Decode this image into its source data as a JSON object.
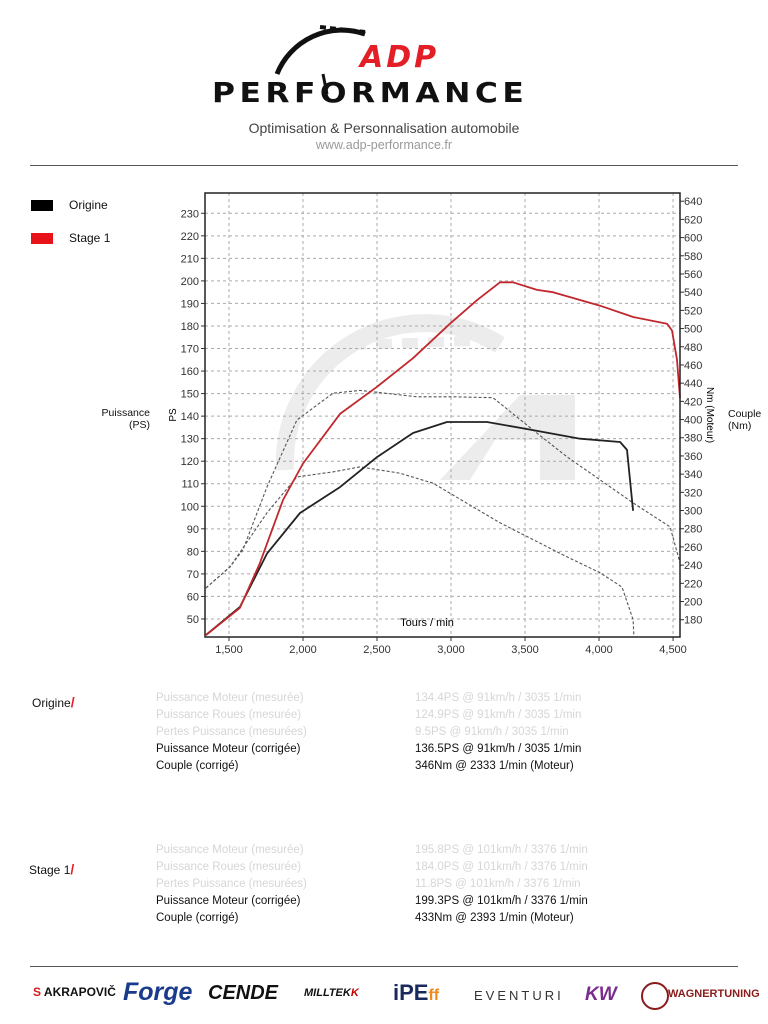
{
  "header": {
    "logo_line1": "ADP",
    "logo_line2": "PERFORMANCE",
    "tagline": "Optimisation & Personnalisation automobile",
    "url": "www.adp-performance.fr"
  },
  "legend": [
    {
      "label": "Origine",
      "color": "#000000"
    },
    {
      "label": "Stage 1",
      "color": "#e8121a"
    }
  ],
  "axis_notes": {
    "left": [
      "Puissance",
      "(PS)"
    ],
    "right": [
      "Couple",
      "(Nm)"
    ]
  },
  "chart_data": {
    "type": "line",
    "xlabel": "Tours / min",
    "ylabel_left": "PS",
    "ylabel_right": "Nm (Moteur)",
    "xlim": [
      1338,
      4547
    ],
    "ylim_left": [
      42,
      239
    ],
    "ylim_right": [
      161,
      649
    ],
    "x_ticks": [
      1500,
      2000,
      2500,
      3000,
      3500,
      4000,
      4500
    ],
    "x_tick_labels": [
      "1,500",
      "2,000",
      "2,500",
      "3,000",
      "3,500",
      "4,000",
      "4,500"
    ],
    "y_left_ticks": [
      50,
      60,
      70,
      80,
      90,
      100,
      110,
      120,
      130,
      140,
      150,
      160,
      170,
      180,
      190,
      200,
      210,
      220,
      230
    ],
    "y_right_ticks": [
      180,
      200,
      220,
      240,
      260,
      280,
      300,
      320,
      340,
      360,
      380,
      400,
      420,
      440,
      460,
      480,
      500,
      520,
      540,
      560,
      580,
      600,
      620,
      640
    ],
    "grid": true,
    "watermark": "ADP logo",
    "series": [
      {
        "name": "Origine",
        "quantity": "power",
        "axis": "left",
        "color": "#222222",
        "style": "solid",
        "x": [
          1345,
          1574,
          1757,
          1980,
          2250,
          2500,
          2743,
          2973,
          3243,
          3554,
          3872,
          4142,
          4189,
          4230
        ],
        "y": [
          42.9,
          55.3,
          79,
          97,
          108.5,
          121.8,
          132.5,
          137.4,
          137.4,
          133.8,
          130,
          128.5,
          125,
          98
        ]
      },
      {
        "name": "Stage 1",
        "quantity": "power",
        "axis": "left",
        "color": "#c0282e",
        "style": "solid",
        "x": [
          1345,
          1574,
          1709,
          1865,
          2000,
          2250,
          2500,
          2743,
          2993,
          3176,
          3331,
          3419,
          3581,
          3689,
          4007,
          4230,
          4459,
          4493,
          4527,
          4547
        ],
        "y": [
          42.9,
          54.9,
          74.8,
          102.8,
          119,
          141,
          153,
          165.7,
          181,
          191.5,
          199.4,
          199.4,
          196,
          195,
          189,
          184,
          181,
          178,
          165,
          148
        ]
      },
      {
        "name": "Origine",
        "quantity": "torque",
        "axis": "right",
        "color": "#555555",
        "style": "dashed",
        "x": [
          1345,
          1507,
          1757,
          1959,
          2203,
          2385,
          2655,
          2878,
          3108,
          3331,
          3554,
          3784,
          4007,
          4155,
          4230,
          4235
        ],
        "y": [
          215,
          238,
          297.5,
          337,
          342.5,
          348,
          341,
          330,
          308,
          286.5,
          268,
          249,
          231.6,
          216,
          180,
          164
        ]
      },
      {
        "name": "Stage 1",
        "quantity": "torque",
        "axis": "right",
        "color": "#555555",
        "style": "dashed",
        "x": [
          1345,
          1507,
          1595,
          1757,
          1959,
          2203,
          2385,
          2770,
          3014,
          3284,
          3554,
          3784,
          4007,
          4230,
          4480,
          4547
        ],
        "y": [
          215,
          238,
          257,
          326,
          399.5,
          429,
          432,
          425,
          425,
          424,
          388.5,
          359,
          333.7,
          308.4,
          282,
          242.6
        ]
      }
    ]
  },
  "results": [
    {
      "label": "Origine",
      "rows": [
        {
          "name": "Puissance Moteur (mesurée)",
          "value": "134.4PS @ 91km/h / 3035 1/min",
          "faded": true
        },
        {
          "name": "Puissance Roues (mesurée)",
          "value": "124.9PS @ 91km/h / 3035 1/min",
          "faded": true
        },
        {
          "name": "Pertes Puissance (mesurées)",
          "value": "9.5PS @ 91km/h / 3035 1/min",
          "faded": true
        },
        {
          "name": "Puissance Moteur (corrigée)",
          "value": "136.5PS @ 91km/h / 3035 1/min",
          "faded": false
        },
        {
          "name": "Couple (corrigé)",
          "value": "346Nm @ 2333 1/min (Moteur)",
          "faded": false
        }
      ]
    },
    {
      "label": "Stage 1",
      "rows": [
        {
          "name": "Puissance Moteur (mesurée)",
          "value": "195.8PS @ 101km/h / 3376 1/min",
          "faded": true
        },
        {
          "name": "Puissance Roues (mesurée)",
          "value": "184.0PS @ 101km/h / 3376 1/min",
          "faded": true
        },
        {
          "name": "Pertes Puissance (mesurées)",
          "value": "11.8PS @ 101km/h / 3376 1/min",
          "faded": true
        },
        {
          "name": "Puissance Moteur (corrigée)",
          "value": "199.3PS @ 101km/h / 3376 1/min",
          "faded": false
        },
        {
          "name": "Couple (corrigé)",
          "value": "433Nm @ 2393 1/min (Moteur)",
          "faded": false
        }
      ]
    }
  ],
  "sponsors": [
    "AKRAPOVIČ",
    "Forge",
    "CENDE",
    "MILLTEK",
    "iPE",
    "EVENTURI",
    "KW",
    "WAGNERTUNING"
  ]
}
